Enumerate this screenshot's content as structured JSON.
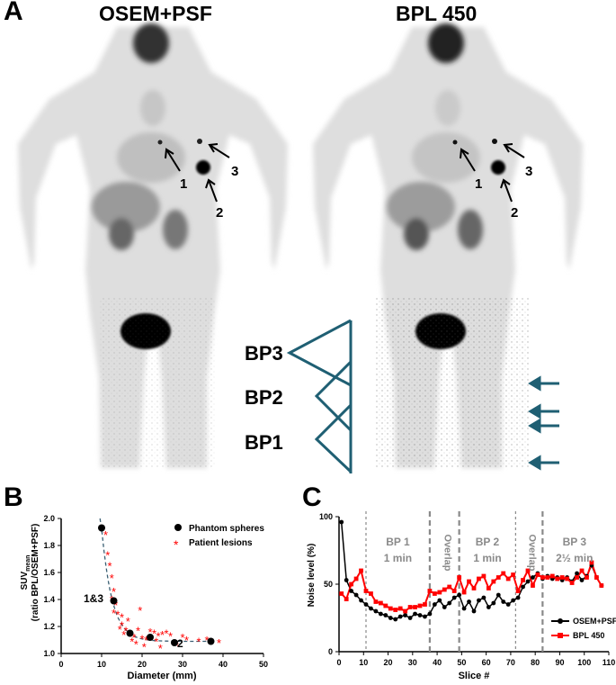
{
  "panels": {
    "a": {
      "letter": "A",
      "left_title": "OSEM+PSF",
      "right_title": "BPL 450",
      "lesion_labels": [
        "1",
        "2",
        "3"
      ],
      "bed_positions": [
        "BP3",
        "BP2",
        "BP1"
      ],
      "colors": {
        "arrow": "#1f5f73",
        "bed_outline": "#1f5f73"
      }
    },
    "b": {
      "letter": "B",
      "ylabel_main": "SUV",
      "ylabel_sub": "mean",
      "ylabel_paren": "(ratio BPL/OSEM+PSF)",
      "xlabel": "Diameter (mm)",
      "annotations": [
        "1&3",
        "2"
      ]
    },
    "c": {
      "letter": "C",
      "ylabel": "Noise level (%)",
      "xlabel": "Slice #",
      "region_labels": [
        {
          "lines": [
            "BP 1",
            "1 min"
          ]
        },
        {
          "lines": [
            "Overlap"
          ]
        },
        {
          "lines": [
            "BP 2",
            "1 min"
          ]
        },
        {
          "lines": [
            "Overlap"
          ]
        },
        {
          "lines": [
            "BP 3",
            "2½ min"
          ]
        }
      ]
    }
  },
  "chart_data": [
    {
      "type": "scatter",
      "xlabel": "Diameter (mm)",
      "ylabel": "SUVmean (ratio BPL/OSEM+PSF)",
      "xlim": [
        0,
        50
      ],
      "ylim": [
        1.0,
        2.0
      ],
      "xticks": [
        0,
        10,
        20,
        30,
        40,
        50
      ],
      "yticks": [
        1.0,
        1.2,
        1.4,
        1.6,
        1.8,
        2.0
      ],
      "legend": "top-right",
      "series": [
        {
          "name": "Phantom spheres",
          "color": "#000000",
          "marker": "circle",
          "points": [
            [
              10,
              1.93
            ],
            [
              13,
              1.39
            ],
            [
              17,
              1.15
            ],
            [
              22,
              1.12
            ],
            [
              28,
              1.08
            ],
            [
              37,
              1.09
            ]
          ]
        },
        {
          "name": "Patient lesions",
          "color": "#ff0000",
          "marker": "asterisk",
          "points": [
            [
              11,
              1.88
            ],
            [
              11.5,
              1.73
            ],
            [
              12,
              1.65
            ],
            [
              12.5,
              1.56
            ],
            [
              13,
              1.46
            ],
            [
              12.5,
              1.4
            ],
            [
              13.5,
              1.36
            ],
            [
              13,
              1.3
            ],
            [
              14,
              1.29
            ],
            [
              15,
              1.27
            ],
            [
              15,
              1.21
            ],
            [
              14.5,
              1.18
            ],
            [
              16,
              1.17
            ],
            [
              15.5,
              1.14
            ],
            [
              17,
              1.13
            ],
            [
              18,
              1.12
            ],
            [
              19,
              1.17
            ],
            [
              20,
              1.11
            ],
            [
              21,
              1.1
            ],
            [
              22,
              1.16
            ],
            [
              23,
              1.15
            ],
            [
              24,
              1.13
            ],
            [
              25,
              1.14
            ],
            [
              26,
              1.15
            ],
            [
              27,
              1.13
            ],
            [
              30,
              1.12
            ],
            [
              31,
              1.1
            ],
            [
              34,
              1.09
            ],
            [
              36,
              1.1
            ],
            [
              39,
              1.08
            ],
            [
              18.5,
              1.07
            ],
            [
              20.5,
              1.05
            ],
            [
              24.5,
              1.04
            ],
            [
              17.5,
              1.09
            ],
            [
              28.5,
              1.06
            ],
            [
              16.5,
              1.24
            ],
            [
              19.5,
              1.32
            ],
            [
              23.5,
              1.09
            ]
          ]
        }
      ],
      "fit_curve": {
        "style": "dashed",
        "color": "#3a5f73"
      }
    },
    {
      "type": "line",
      "xlabel": "Slice #",
      "ylabel": "Noise level (%)",
      "xlim": [
        0,
        110
      ],
      "ylim": [
        0,
        100
      ],
      "xticks": [
        0,
        10,
        20,
        30,
        40,
        50,
        60,
        70,
        80,
        90,
        100,
        110
      ],
      "yticks": [
        0,
        50,
        100
      ],
      "legend": "bottom-right",
      "vlines": [
        {
          "x": 11,
          "style": "dashed"
        },
        {
          "x": 37,
          "style": "dashed"
        },
        {
          "x": 49,
          "style": "dashed"
        },
        {
          "x": 72,
          "style": "dashed"
        },
        {
          "x": 83,
          "style": "dashed"
        }
      ],
      "series": [
        {
          "name": "OSEM+PSF",
          "color": "#000000",
          "marker": "circle",
          "x": [
            1,
            3,
            5,
            7,
            9,
            11,
            13,
            15,
            17,
            19,
            21,
            23,
            25,
            27,
            29,
            31,
            33,
            35,
            37,
            39,
            41,
            43,
            45,
            47,
            49,
            51,
            53,
            55,
            57,
            59,
            61,
            63,
            65,
            67,
            69,
            71,
            73,
            75,
            77,
            79,
            81,
            83,
            85,
            87,
            89,
            91,
            93,
            95,
            97,
            99,
            101,
            103,
            105,
            107
          ],
          "y": [
            96,
            53,
            45,
            42,
            38,
            35,
            32,
            30,
            28,
            27,
            25,
            24,
            26,
            27,
            25,
            28,
            27,
            26,
            28,
            35,
            38,
            33,
            36,
            40,
            42,
            32,
            37,
            30,
            38,
            40,
            33,
            36,
            42,
            37,
            35,
            38,
            40,
            48,
            52,
            55,
            58,
            54,
            56,
            54,
            55,
            53,
            55,
            52,
            58,
            53,
            56,
            64,
            55,
            49
          ]
        },
        {
          "name": "BPL 450",
          "color": "#ff0000",
          "marker": "square",
          "x": [
            1,
            3,
            5,
            7,
            9,
            11,
            13,
            15,
            17,
            19,
            21,
            23,
            25,
            27,
            29,
            31,
            33,
            35,
            37,
            39,
            41,
            43,
            45,
            47,
            49,
            51,
            53,
            55,
            57,
            59,
            61,
            63,
            65,
            67,
            69,
            71,
            73,
            75,
            77,
            79,
            81,
            83,
            85,
            87,
            89,
            91,
            93,
            95,
            97,
            99,
            101,
            103,
            105,
            107
          ],
          "y": [
            43,
            39,
            50,
            54,
            60,
            45,
            43,
            37,
            36,
            34,
            32,
            31,
            32,
            30,
            33,
            33,
            34,
            35,
            45,
            43,
            44,
            46,
            48,
            45,
            55,
            44,
            52,
            47,
            54,
            56,
            47,
            52,
            55,
            58,
            54,
            57,
            45,
            53,
            60,
            49,
            57,
            55,
            55,
            56,
            54,
            55,
            54,
            51,
            55,
            60,
            55,
            66,
            55,
            49
          ]
        }
      ]
    }
  ]
}
